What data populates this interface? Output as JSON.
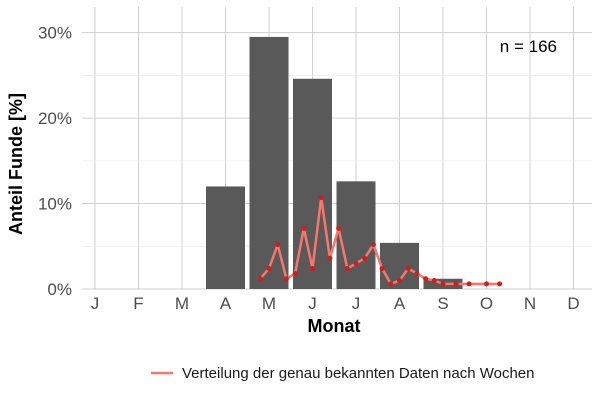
{
  "chart_data": {
    "type": "bar",
    "xlabel": "Monat",
    "ylabel": "Anteil Funde [%]",
    "annotation": "n = 166",
    "ylim": [
      0,
      33
    ],
    "y_ticks": [
      0,
      10,
      20,
      30
    ],
    "y_tick_labels": [
      "0%",
      "10%",
      "20%",
      "30%"
    ],
    "grid": true,
    "legend_position": "bottom-right",
    "categories": [
      "J",
      "F",
      "M",
      "A",
      "M",
      "J",
      "J",
      "A",
      "S",
      "O",
      "N",
      "D"
    ],
    "series": [
      {
        "kind": "bar",
        "values": [
          0,
          0,
          0,
          12.0,
          29.5,
          24.6,
          12.6,
          5.4,
          1.2,
          0,
          0,
          0
        ],
        "color": "#595959"
      },
      {
        "kind": "line",
        "name": "Verteilung der genau bekannten Daten nach Wochen",
        "x": [
          3.8,
          4.0,
          4.2,
          4.4,
          4.6,
          4.8,
          5.0,
          5.2,
          5.4,
          5.6,
          5.8,
          6.0,
          6.2,
          6.4,
          6.6,
          6.8,
          7.0,
          7.2,
          7.4,
          7.6,
          7.8,
          8.0,
          8.3,
          8.6,
          9.0,
          9.3
        ],
        "values": [
          1.2,
          2.4,
          5.2,
          1.2,
          1.8,
          7.1,
          2.4,
          10.7,
          3.6,
          7.1,
          2.4,
          3.0,
          3.6,
          5.2,
          2.4,
          0.6,
          1.0,
          2.4,
          1.8,
          1.2,
          1.0,
          0.6,
          0.6,
          0.6,
          0.6,
          0.6
        ],
        "color": "#f8766d"
      }
    ]
  }
}
